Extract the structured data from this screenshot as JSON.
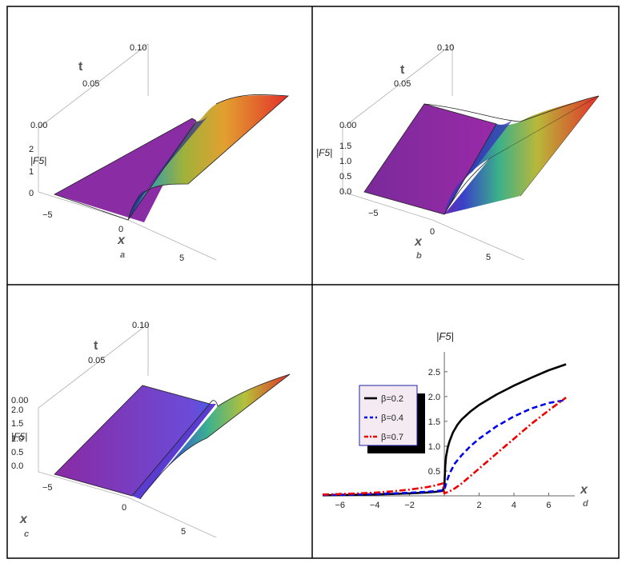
{
  "panels": {
    "a": {
      "label": "a",
      "x_axis_label": "x",
      "t_axis_label": "t",
      "z_axis_label": "|F5|",
      "x_ticks": [
        "−5",
        "0",
        "5"
      ],
      "t_ticks": [
        "0.00",
        "0.05",
        "0.10"
      ],
      "z_ticks": [
        "0",
        "1",
        "2"
      ]
    },
    "b": {
      "label": "b",
      "x_axis_label": "x",
      "t_axis_label": "t",
      "z_axis_label": "|F5|",
      "x_ticks": [
        "−5",
        "0",
        "5"
      ],
      "t_ticks": [
        "0.00",
        "0.05",
        "0.10"
      ],
      "z_ticks": [
        "0.0",
        "0.5",
        "1.0",
        "1.5"
      ]
    },
    "c": {
      "label": "c",
      "x_axis_label": "x",
      "t_axis_label": "t",
      "z_axis_label": "|F5|",
      "x_ticks": [
        "−5",
        "0",
        "5"
      ],
      "t_ticks": [
        "0.00",
        "0.05",
        "0.10"
      ],
      "z_ticks": [
        "0.0",
        "0.5",
        "1.0",
        "1.5",
        "2.0"
      ]
    }
  },
  "chart_data": {
    "type": "line",
    "label": "d",
    "xlabel": "x",
    "ylabel": "|F5|",
    "xlim": [
      -7,
      7.5
    ],
    "ylim": [
      0,
      2.9
    ],
    "x_ticks": [
      -6,
      -4,
      -2,
      2,
      4,
      6
    ],
    "y_ticks": [
      0.5,
      1.0,
      1.5,
      2.0,
      2.5
    ],
    "legend": "middle-left",
    "series": [
      {
        "name": "β=0.2",
        "color": "#000000",
        "style": "solid",
        "points": [
          [
            -7,
            0.012
          ],
          [
            -6,
            0.016
          ],
          [
            -5,
            0.021
          ],
          [
            -4,
            0.028
          ],
          [
            -3,
            0.037
          ],
          [
            -2,
            0.05
          ],
          [
            -1,
            0.068
          ],
          [
            -0.5,
            0.08
          ],
          [
            -0.1,
            0.1
          ],
          [
            0,
            0.2
          ],
          [
            0.05,
            0.6
          ],
          [
            0.1,
            0.79
          ],
          [
            0.2,
            0.98
          ],
          [
            0.3,
            1.1
          ],
          [
            0.5,
            1.28
          ],
          [
            0.75,
            1.43
          ],
          [
            1,
            1.54
          ],
          [
            1.5,
            1.7
          ],
          [
            2,
            1.83
          ],
          [
            3,
            2.04
          ],
          [
            4,
            2.22
          ],
          [
            5,
            2.38
          ],
          [
            6,
            2.53
          ],
          [
            7,
            2.65
          ]
        ]
      },
      {
        "name": "β=0.4",
        "color": "#0000ee",
        "style": "dashed",
        "points": [
          [
            -7,
            0.016
          ],
          [
            -6,
            0.021
          ],
          [
            -5,
            0.028
          ],
          [
            -4,
            0.036
          ],
          [
            -3,
            0.047
          ],
          [
            -2,
            0.062
          ],
          [
            -1,
            0.082
          ],
          [
            -0.5,
            0.095
          ],
          [
            -0.1,
            0.11
          ],
          [
            0,
            0.12
          ],
          [
            0.1,
            0.25
          ],
          [
            0.3,
            0.45
          ],
          [
            0.6,
            0.65
          ],
          [
            1,
            0.82
          ],
          [
            1.5,
            1.0
          ],
          [
            2,
            1.15
          ],
          [
            3,
            1.4
          ],
          [
            4,
            1.6
          ],
          [
            5,
            1.76
          ],
          [
            6,
            1.87
          ],
          [
            7,
            1.93
          ]
        ]
      },
      {
        "name": "β=0.7",
        "color": "#ee0000",
        "style": "dashdot",
        "points": [
          [
            -7,
            0.025
          ],
          [
            -6,
            0.035
          ],
          [
            -5,
            0.048
          ],
          [
            -4,
            0.065
          ],
          [
            -3,
            0.09
          ],
          [
            -2,
            0.125
          ],
          [
            -1,
            0.175
          ],
          [
            -0.5,
            0.21
          ],
          [
            -0.1,
            0.25
          ],
          [
            0,
            0.05
          ],
          [
            0.3,
            0.09
          ],
          [
            0.6,
            0.15
          ],
          [
            1,
            0.25
          ],
          [
            1.5,
            0.4
          ],
          [
            2,
            0.55
          ],
          [
            3,
            0.85
          ],
          [
            4,
            1.15
          ],
          [
            5,
            1.45
          ],
          [
            6,
            1.72
          ],
          [
            7,
            1.98
          ]
        ]
      }
    ]
  }
}
